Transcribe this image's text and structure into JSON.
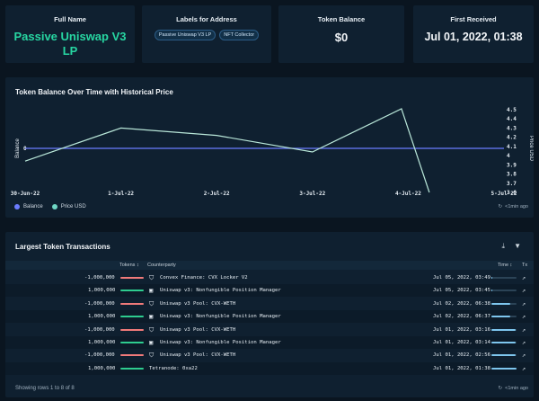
{
  "cards": {
    "full_name": {
      "title": "Full Name",
      "value": "Passive Uniswap V3 LP"
    },
    "labels": {
      "title": "Labels for Address",
      "tags": [
        "Passive Uniswap V3 LP",
        "NFT Collector"
      ]
    },
    "token_balance": {
      "title": "Token Balance",
      "value": "$0"
    },
    "first_received": {
      "title": "First Received",
      "value": "Jul 01, 2022, 01:38"
    }
  },
  "chart_section": {
    "title": "Token Balance Over Time with Historical Price",
    "legend": [
      "Balance",
      "Price USD"
    ],
    "updated": "<1min ago"
  },
  "chart_data": {
    "type": "line",
    "title": "Token Balance Over Time with Historical Price",
    "x": [
      "30-Jun-22",
      "1-Jul-22",
      "2-Jul-22",
      "3-Jul-22",
      "4-Jul-22",
      "5-Jul-22"
    ],
    "ylabel": "Balance",
    "y2label": "Price USD",
    "y_ticks": [
      "0"
    ],
    "y2_ticks": [
      "4.5",
      "4.4",
      "4.3",
      "4.2",
      "4.1",
      "4",
      "3.9",
      "3.8",
      "3.7",
      "3.6"
    ],
    "y2lim": [
      3.6,
      4.5
    ],
    "series": [
      {
        "name": "Balance",
        "axis": "left",
        "color": "#6b7cff",
        "points": [
          [
            "30-Jun-22",
            0
          ],
          [
            "1-Jul-22",
            0
          ],
          [
            "2-Jul-22",
            0
          ],
          [
            "3-Jul-22",
            0
          ],
          [
            "4-Jul-22",
            0
          ],
          [
            "5-Jul-22",
            0
          ]
        ]
      },
      {
        "name": "Price USD",
        "axis": "right",
        "color": "#b8e6d8",
        "points": [
          [
            "30-Jun-22",
            3.95
          ],
          [
            "1-Jul-22",
            4.3
          ],
          [
            "2-Jul-22",
            4.22
          ],
          [
            "3-Jul-22",
            4.04
          ],
          [
            "4-Jul-22",
            4.51
          ],
          [
            "4.2-Jul-22",
            3.6
          ]
        ]
      }
    ],
    "grid": false,
    "legend_position": "bottom-left"
  },
  "transactions": {
    "title": "Largest Token Transactions",
    "columns": {
      "tokens": "Tokens",
      "counterparty": "Counterparty",
      "time": "Time",
      "tx": "Tx"
    },
    "rows": [
      {
        "tokens": "-1,000,000",
        "flow": "out",
        "icon": "shield-icon",
        "counterparty": "Convex Finance: CVX Locker V2",
        "time": "Jul 05, 2022, 03:49",
        "recency": 0.05
      },
      {
        "tokens": "1,000,000",
        "flow": "in",
        "icon": "nft-icon",
        "counterparty": "Uniswap v3: Nonfungible Position Manager",
        "time": "Jul 05, 2022, 03:45",
        "recency": 0.05
      },
      {
        "tokens": "-1,000,000",
        "flow": "out",
        "icon": "pool-icon",
        "counterparty": "Uniswap v3 Pool: CVX-WETH",
        "time": "Jul 02, 2022, 06:38",
        "recency": 0.75
      },
      {
        "tokens": "1,000,000",
        "flow": "in",
        "icon": "nft-icon",
        "counterparty": "Uniswap v3: Nonfungible Position Manager",
        "time": "Jul 02, 2022, 06:37",
        "recency": 0.75
      },
      {
        "tokens": "-1,000,000",
        "flow": "out",
        "icon": "pool-icon",
        "counterparty": "Uniswap v3 Pool: CVX-WETH",
        "time": "Jul 01, 2022, 03:16",
        "recency": 0.97
      },
      {
        "tokens": "1,000,000",
        "flow": "in",
        "icon": "nft-icon",
        "counterparty": "Uniswap v3: Nonfungible Position Manager",
        "time": "Jul 01, 2022, 03:14",
        "recency": 0.97
      },
      {
        "tokens": "-1,000,000",
        "flow": "out",
        "icon": "pool-icon",
        "counterparty": "Uniswap v3 Pool: CVX-WETH",
        "time": "Jul 01, 2022, 02:56",
        "recency": 0.98
      },
      {
        "tokens": "1,000,000",
        "flow": "in",
        "icon": "",
        "counterparty": "Tetranode: 0xa22",
        "time": "Jul 01, 2022, 01:38",
        "recency": 1.0
      }
    ],
    "footer": "Showing rows 1 to 8 of 8",
    "updated": "<1min ago"
  },
  "colors": {
    "in": "#2ecc8f",
    "out": "#f07a7a",
    "accent": "#27d6a2"
  }
}
